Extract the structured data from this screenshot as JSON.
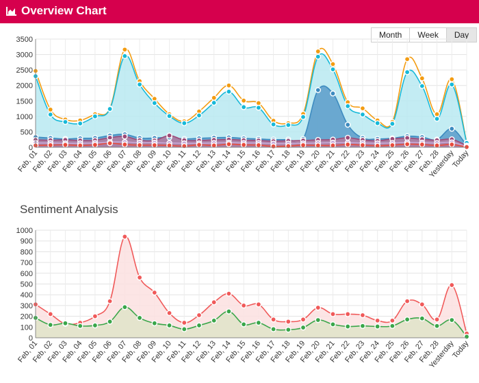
{
  "header": {
    "title": "Overview Chart",
    "icon": "area-chart-icon"
  },
  "range_buttons": [
    {
      "label": "Month",
      "active": false
    },
    {
      "label": "Week",
      "active": false
    },
    {
      "label": "Day",
      "active": true
    }
  ],
  "sentiment": {
    "title": "Sentiment Analysis"
  },
  "chart_data": [
    {
      "type": "area",
      "title": "Overview Chart",
      "categories": [
        "Feb, 01",
        "Feb, 02",
        "Feb, 03",
        "Feb, 04",
        "Feb, 05",
        "Feb, 06",
        "Feb, 07",
        "Feb, 08",
        "Feb, 09",
        "Feb, 10",
        "Feb, 11",
        "Feb, 12",
        "Feb, 13",
        "Feb, 14",
        "Feb, 15",
        "Feb, 16",
        "Feb, 17",
        "Feb, 18",
        "Feb, 19",
        "Feb, 20",
        "Feb, 21",
        "Feb, 22",
        "Feb, 23",
        "Feb, 24",
        "Feb, 25",
        "Feb, 26",
        "Feb, 27",
        "Feb, 28",
        "Yesterday",
        "Today"
      ],
      "ylim": [
        0,
        3500
      ],
      "yticks": [
        0,
        500,
        1000,
        1500,
        2000,
        2500,
        3000,
        3500
      ],
      "grid": true,
      "series": [
        {
          "color": "#f39c12",
          "fill": "none",
          "values": [
            2470,
            1220,
            900,
            870,
            1070,
            1260,
            3160,
            2140,
            1570,
            1070,
            840,
            1160,
            1600,
            2000,
            1510,
            1430,
            860,
            780,
            1080,
            3100,
            2690,
            1460,
            1260,
            870,
            820,
            2850,
            2230,
            1070,
            2200,
            150
          ]
        },
        {
          "color": "#17b9d8",
          "fill": "#b9e9f1",
          "values": [
            2300,
            1060,
            820,
            770,
            1000,
            1240,
            2950,
            2030,
            1430,
            1010,
            780,
            1030,
            1440,
            1800,
            1300,
            1280,
            740,
            720,
            980,
            2930,
            2520,
            1330,
            1060,
            780,
            760,
            2430,
            1980,
            920,
            2030,
            140
          ]
        },
        {
          "color": "#3d8bc0",
          "fill": "#5b9cc9",
          "values": [
            330,
            300,
            270,
            290,
            300,
            380,
            420,
            300,
            300,
            320,
            270,
            290,
            310,
            320,
            290,
            270,
            250,
            250,
            270,
            1850,
            1740,
            730,
            300,
            270,
            290,
            360,
            330,
            250,
            600,
            60
          ]
        },
        {
          "color": "#9c4a78",
          "fill": "#b57a9e",
          "values": [
            240,
            230,
            240,
            220,
            230,
            310,
            350,
            230,
            220,
            380,
            230,
            220,
            240,
            250,
            230,
            220,
            200,
            210,
            220,
            240,
            250,
            310,
            240,
            210,
            270,
            300,
            260,
            230,
            260,
            50
          ]
        },
        {
          "color": "#c8a9d8",
          "fill": "none",
          "values": [
            140,
            140,
            130,
            130,
            140,
            170,
            170,
            150,
            150,
            140,
            130,
            130,
            140,
            150,
            140,
            140,
            120,
            120,
            130,
            140,
            150,
            150,
            140,
            130,
            140,
            160,
            150,
            140,
            160,
            20
          ]
        },
        {
          "color": "#e84c3d",
          "fill": "none",
          "values": [
            60,
            70,
            80,
            60,
            80,
            130,
            90,
            70,
            70,
            60,
            40,
            80,
            60,
            100,
            80,
            70,
            30,
            40,
            70,
            60,
            60,
            90,
            70,
            50,
            70,
            100,
            90,
            60,
            90,
            10
          ]
        }
      ]
    },
    {
      "type": "area",
      "title": "Sentiment Analysis",
      "categories": [
        "Feb, 01",
        "Feb, 02",
        "Feb, 03",
        "Feb, 04",
        "Feb, 05",
        "Feb, 06",
        "Feb, 07",
        "Feb, 08",
        "Feb, 09",
        "Feb, 10",
        "Feb, 11",
        "Feb, 12",
        "Feb, 13",
        "Feb, 14",
        "Feb, 15",
        "Feb, 16",
        "Feb, 17",
        "Feb, 18",
        "Feb, 19",
        "Feb, 20",
        "Feb, 21",
        "Feb, 22",
        "Feb, 23",
        "Feb, 24",
        "Feb, 25",
        "Feb, 26",
        "Feb, 27",
        "Feb, 28",
        "Yesterday",
        "Today"
      ],
      "ylim": [
        0,
        1000
      ],
      "yticks": [
        0,
        100,
        200,
        300,
        400,
        500,
        600,
        700,
        800,
        900,
        1000
      ],
      "grid": true,
      "series": [
        {
          "color": "#f05a5a",
          "fill": "#fbe1e1",
          "values": [
            310,
            220,
            130,
            140,
            200,
            340,
            940,
            560,
            420,
            230,
            140,
            210,
            330,
            410,
            300,
            310,
            170,
            150,
            170,
            280,
            220,
            220,
            210,
            160,
            160,
            340,
            310,
            170,
            490,
            40
          ]
        },
        {
          "color": "#3aa64a",
          "fill": "#dfe4c9",
          "values": [
            185,
            120,
            135,
            110,
            115,
            150,
            285,
            185,
            135,
            115,
            80,
            115,
            160,
            245,
            125,
            140,
            80,
            75,
            95,
            165,
            125,
            105,
            110,
            105,
            110,
            170,
            180,
            110,
            165,
            10
          ]
        }
      ]
    }
  ]
}
